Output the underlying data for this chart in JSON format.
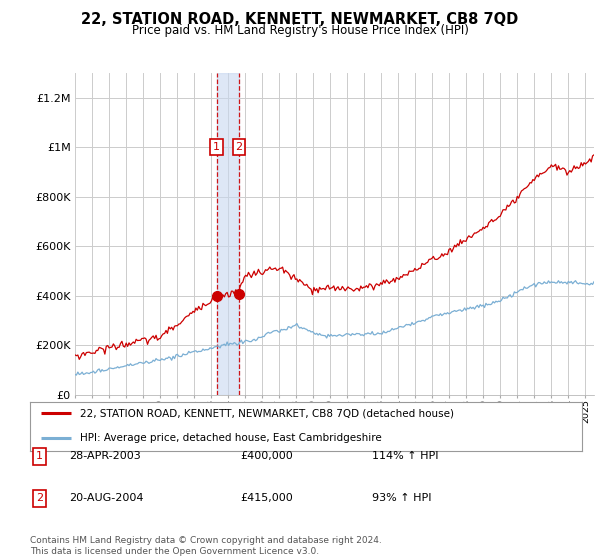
{
  "title": "22, STATION ROAD, KENNETT, NEWMARKET, CB8 7QD",
  "subtitle": "Price paid vs. HM Land Registry's House Price Index (HPI)",
  "legend_line1": "22, STATION ROAD, KENNETT, NEWMARKET, CB8 7QD (detached house)",
  "legend_line2": "HPI: Average price, detached house, East Cambridgeshire",
  "footnote": "Contains HM Land Registry data © Crown copyright and database right 2024.\nThis data is licensed under the Open Government Licence v3.0.",
  "transaction1_date": "28-APR-2003",
  "transaction1_price": "£400,000",
  "transaction1_hpi": "114% ↑ HPI",
  "transaction1_year": 2003.32,
  "transaction1_value": 400000,
  "transaction2_date": "20-AUG-2004",
  "transaction2_price": "£415,000",
  "transaction2_hpi": "93% ↑ HPI",
  "transaction2_year": 2004.63,
  "transaction2_value": 415000,
  "red_color": "#cc0000",
  "blue_color": "#7bafd4",
  "vline_color": "#cc0000",
  "shade_color": "#c8d8f0",
  "background_color": "#ffffff",
  "grid_color": "#cccccc",
  "ylim": [
    0,
    1300000
  ],
  "xlim_start": 1995.0,
  "xlim_end": 2025.5
}
